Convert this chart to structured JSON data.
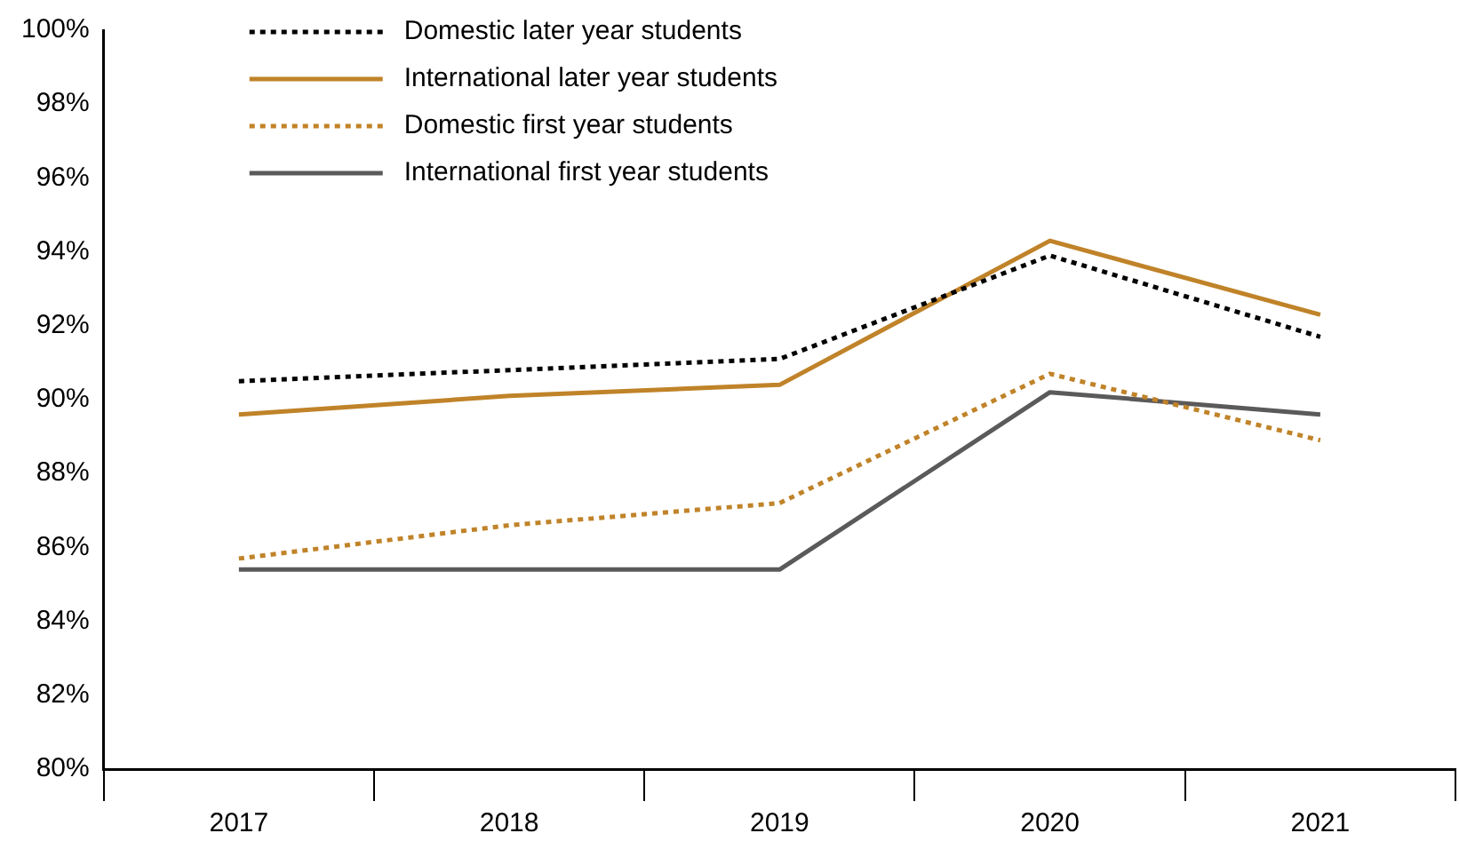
{
  "chart_data": {
    "type": "line",
    "categories": [
      "2017",
      "2018",
      "2019",
      "2020",
      "2021"
    ],
    "series": [
      {
        "name": "Domestic later year students",
        "color": "#000000",
        "line_style": "dotted",
        "values": [
          90.5,
          90.8,
          91.1,
          93.9,
          91.7
        ]
      },
      {
        "name": "International later year students",
        "color": "#c08329",
        "line_style": "solid",
        "values": [
          89.6,
          90.1,
          90.4,
          94.3,
          92.3
        ]
      },
      {
        "name": "Domestic first year students",
        "color": "#c08329",
        "line_style": "dotted",
        "values": [
          85.7,
          86.6,
          87.2,
          90.7,
          88.9
        ]
      },
      {
        "name": "International first year students",
        "color": "#5a5a5a",
        "line_style": "solid",
        "values": [
          85.4,
          85.4,
          85.4,
          90.2,
          89.6
        ]
      }
    ],
    "ylim": [
      80,
      100
    ],
    "yticks": [
      {
        "value": 80,
        "label": "80%"
      },
      {
        "value": 82,
        "label": "82%"
      },
      {
        "value": 84,
        "label": "84%"
      },
      {
        "value": 86,
        "label": "86%"
      },
      {
        "value": 88,
        "label": "88%"
      },
      {
        "value": 90,
        "label": "90%"
      },
      {
        "value": 92,
        "label": "92%"
      },
      {
        "value": 94,
        "label": "94%"
      },
      {
        "value": 96,
        "label": "96%"
      },
      {
        "value": 98,
        "label": "98%"
      },
      {
        "value": 100,
        "label": "100%"
      }
    ],
    "grid": false,
    "legend": "top",
    "marker": "none"
  }
}
